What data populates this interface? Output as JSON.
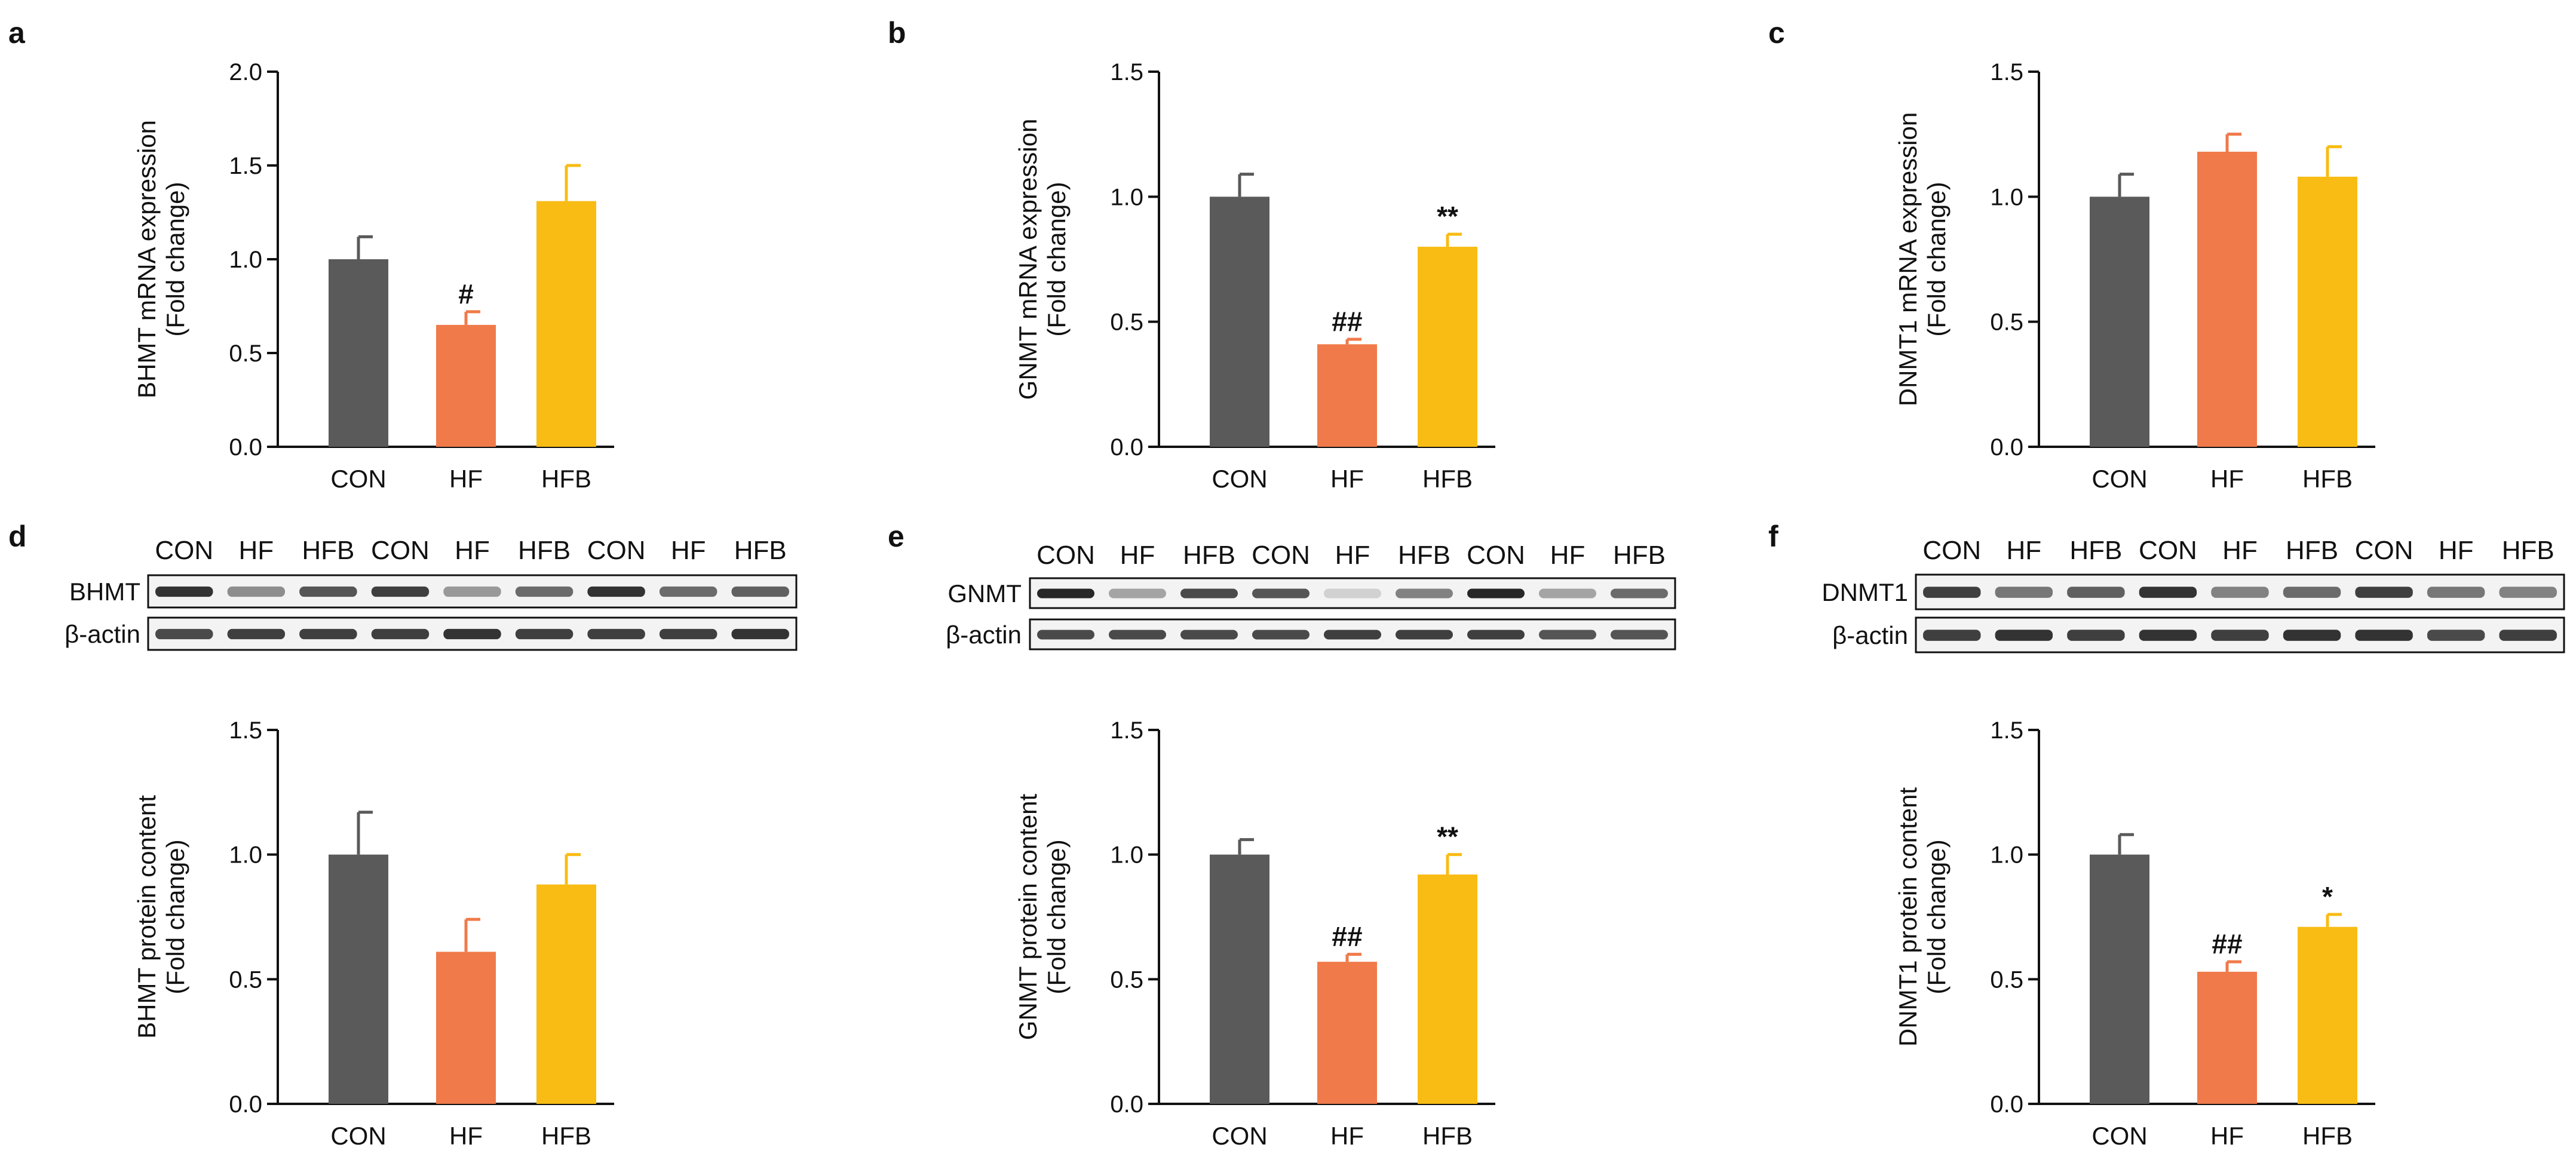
{
  "colors": {
    "CON": "#5a5a5a",
    "HF": "#f07a4a",
    "HFB": "#f8bc14",
    "axis": "#111111"
  },
  "chart_data": [
    {
      "panel": "a",
      "type": "bar",
      "categories": [
        "CON",
        "HF",
        "HFB"
      ],
      "values": [
        1.0,
        0.65,
        1.31
      ],
      "errors": [
        0.12,
        0.07,
        0.19
      ],
      "annotations": [
        "",
        "#",
        ""
      ],
      "ylabel": [
        "BHMT mRNA expression",
        "(Fold change)"
      ],
      "ylim": [
        0,
        2.0
      ],
      "yticks": [
        0,
        0.5,
        1.0,
        1.5,
        2.0
      ],
      "ytick_labels": [
        "0.0",
        "0.5",
        "1.0",
        "1.5",
        "2.0"
      ]
    },
    {
      "panel": "b",
      "type": "bar",
      "categories": [
        "CON",
        "HF",
        "HFB"
      ],
      "values": [
        1.0,
        0.41,
        0.8
      ],
      "errors": [
        0.09,
        0.02,
        0.05
      ],
      "annotations": [
        "",
        "##",
        "**"
      ],
      "ylabel": [
        "GNMT mRNA expression",
        "(Fold change)"
      ],
      "ylim": [
        0,
        1.5
      ],
      "yticks": [
        0,
        0.5,
        1.0,
        1.5
      ],
      "ytick_labels": [
        "0.0",
        "0.5",
        "1.0",
        "1.5"
      ]
    },
    {
      "panel": "c",
      "type": "bar",
      "categories": [
        "CON",
        "HF",
        "HFB"
      ],
      "values": [
        1.0,
        1.18,
        1.08
      ],
      "errors": [
        0.09,
        0.07,
        0.12
      ],
      "annotations": [
        "",
        "",
        ""
      ],
      "ylabel": [
        "DNMT1 mRNA expression",
        "(Fold change)"
      ],
      "ylim": [
        0,
        1.5
      ],
      "yticks": [
        0,
        0.5,
        1.0,
        1.5
      ],
      "ytick_labels": [
        "0.0",
        "0.5",
        "1.0",
        "1.5"
      ]
    },
    {
      "panel": "d",
      "type": "bar",
      "categories": [
        "CON",
        "HF",
        "HFB"
      ],
      "values": [
        1.0,
        0.61,
        0.88
      ],
      "errors": [
        0.17,
        0.13,
        0.12
      ],
      "annotations": [
        "",
        "",
        ""
      ],
      "ylabel": [
        "BHMT protein content",
        "(Fold change)"
      ],
      "ylim": [
        0,
        1.5
      ],
      "yticks": [
        0,
        0.5,
        1.0,
        1.5
      ],
      "ytick_labels": [
        "0.0",
        "0.5",
        "1.0",
        "1.5"
      ]
    },
    {
      "panel": "e",
      "type": "bar",
      "categories": [
        "CON",
        "HF",
        "HFB"
      ],
      "values": [
        1.0,
        0.57,
        0.92
      ],
      "errors": [
        0.06,
        0.03,
        0.08
      ],
      "annotations": [
        "",
        "##",
        "**"
      ],
      "ylabel": [
        "GNMT protein content",
        "(Fold change)"
      ],
      "ylim": [
        0,
        1.5
      ],
      "yticks": [
        0,
        0.5,
        1.0,
        1.5
      ],
      "ytick_labels": [
        "0.0",
        "0.5",
        "1.0",
        "1.5"
      ]
    },
    {
      "panel": "f",
      "type": "bar",
      "categories": [
        "CON",
        "HF",
        "HFB"
      ],
      "values": [
        1.0,
        0.53,
        0.71
      ],
      "errors": [
        0.08,
        0.04,
        0.05
      ],
      "annotations": [
        "",
        "##",
        "*"
      ],
      "ylabel": [
        "DNMT1 protein content",
        "(Fold change)"
      ],
      "ylim": [
        0,
        1.5
      ],
      "yticks": [
        0,
        0.5,
        1.0,
        1.5
      ],
      "ytick_labels": [
        "0.0",
        "0.5",
        "1.0",
        "1.5"
      ]
    }
  ],
  "blots": [
    {
      "panel": "d",
      "lanes": [
        "CON",
        "HF",
        "HFB",
        "CON",
        "HF",
        "HFB",
        "CON",
        "HF",
        "HFB"
      ],
      "rows": [
        {
          "label": "BHMT",
          "intensity": [
            0.85,
            0.45,
            0.7,
            0.8,
            0.4,
            0.6,
            0.85,
            0.6,
            0.65
          ]
        },
        {
          "label": "β-actin",
          "intensity": [
            0.75,
            0.8,
            0.8,
            0.8,
            0.85,
            0.8,
            0.8,
            0.8,
            0.85
          ]
        }
      ]
    },
    {
      "panel": "e",
      "lanes": [
        "CON",
        "HF",
        "HFB",
        "CON",
        "HF",
        "HFB",
        "CON",
        "HF",
        "HFB"
      ],
      "rows": [
        {
          "label": "GNMT",
          "intensity": [
            0.9,
            0.35,
            0.75,
            0.7,
            0.15,
            0.5,
            0.9,
            0.35,
            0.6
          ]
        },
        {
          "label": "β-actin",
          "intensity": [
            0.75,
            0.75,
            0.75,
            0.75,
            0.8,
            0.8,
            0.8,
            0.7,
            0.7
          ]
        }
      ]
    },
    {
      "panel": "f",
      "lanes": [
        "CON",
        "HF",
        "HFB",
        "CON",
        "HF",
        "HFB",
        "CON",
        "HF",
        "HFB"
      ],
      "rows": [
        {
          "label": "DNMT1",
          "intensity": [
            0.8,
            0.55,
            0.65,
            0.85,
            0.5,
            0.6,
            0.8,
            0.55,
            0.5
          ]
        },
        {
          "label": "β-actin",
          "intensity": [
            0.8,
            0.85,
            0.8,
            0.85,
            0.8,
            0.85,
            0.85,
            0.75,
            0.8
          ]
        }
      ]
    }
  ]
}
